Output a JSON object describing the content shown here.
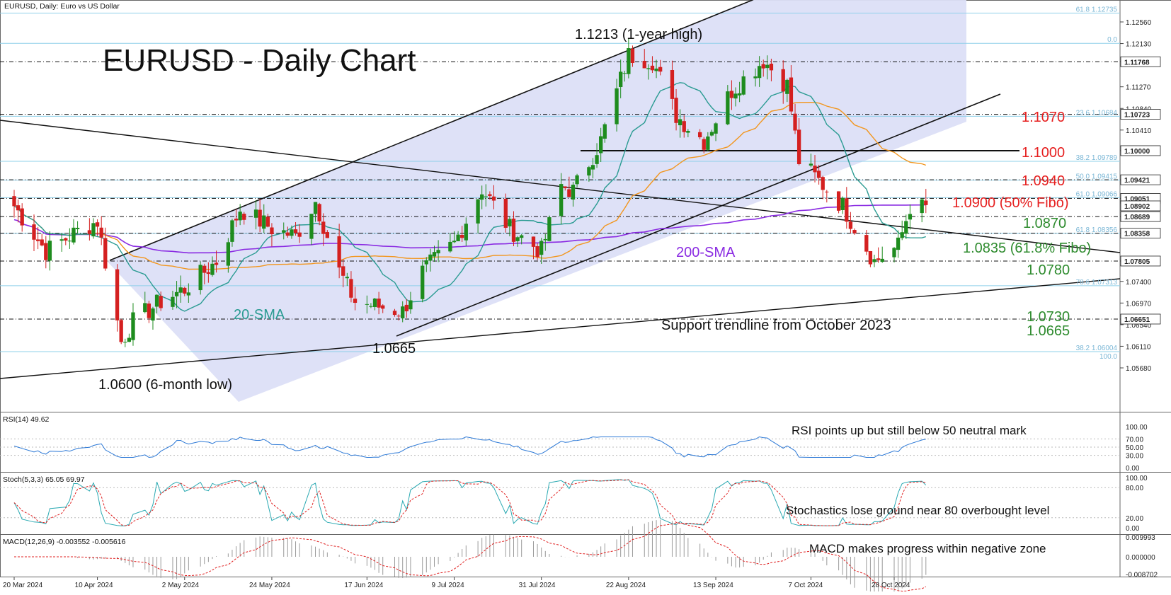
{
  "header": {
    "symbol_label": "EURUSD, Daily:  Euro vs US Dollar",
    "chart_title": "EURUSD - Daily Chart"
  },
  "colors": {
    "channel_fill": "#dcdff7",
    "sma20": "#2a9b92",
    "sma50": "#f2961e",
    "sma200": "#8a2be2",
    "bull": "#1e8c1e",
    "bear": "#d42020",
    "fibo": "#8fd0ea",
    "level_red": "#e62020",
    "level_green": "#2e8b2e",
    "rsi": "#2b78d6",
    "stoch_main": "#2aa9b2",
    "stoch_signal": "#e02020",
    "macd_hist": "#9a9a9a",
    "macd_signal": "#e02020"
  },
  "price_axis": {
    "ticks": [
      "1.12560",
      "1.12130",
      "1.11768",
      "1.11270",
      "1.10840",
      "1.10410",
      "1.10000",
      "1.09421",
      "1.09051",
      "1.08689",
      "1.08358",
      "1.07805",
      "1.07400",
      "1.06970",
      "1.06651",
      "1.06540",
      "1.06110",
      "1.05680"
    ],
    "tags": [
      "1.09051",
      "1.08902",
      "1.08689",
      "1.08358",
      "1.07805",
      "1.06651",
      "1.10000",
      "1.10723",
      "1.11768",
      "1.09421"
    ]
  },
  "fibo_labels": [
    "61.8 1.12735",
    "0.0",
    "23.6 1.10684",
    "38.2 1.09789",
    "50.0 1.09415",
    "61.0 1.09066",
    "61.8 1.08356",
    "78.6 1.07313",
    "38.2 1.06004",
    "100.0"
  ],
  "levels": [
    {
      "text": "1.1070",
      "color": "red"
    },
    {
      "text": "1.1000",
      "color": "red"
    },
    {
      "text": "1.0940",
      "color": "red"
    },
    {
      "text": "1.0900 (50% Fibo)",
      "color": "red"
    },
    {
      "text": "1.0870",
      "color": "green"
    },
    {
      "text": "1.0835 (61.8% Fibo)",
      "color": "green"
    },
    {
      "text": "1.0780",
      "color": "green"
    },
    {
      "text": "1.0730",
      "color": "green"
    },
    {
      "text": "1.0665",
      "color": "green"
    }
  ],
  "annotations": {
    "year_high": "1.1213 (1-year high)",
    "six_month_low": "1.0600 (6-month low)",
    "low_1065": "1.0665",
    "sma20": "20-SMA",
    "sma200": "200-SMA",
    "support": "Support trendline from October 2023",
    "rsi_note": "RSI points up but still below 50 neutral mark",
    "stoch_note": "Stochastics lose ground near 80 overbought level",
    "macd_note": "MACD makes progress within negative zone"
  },
  "rsi_panel": {
    "title": "RSI(14) 49.62",
    "ticks": [
      "100.00",
      "70.00",
      "50.00",
      "30.00",
      "0.00"
    ]
  },
  "stoch_panel": {
    "title": "Stoch(5,3,3) 65.05 69.97",
    "ticks": [
      "100.00",
      "80.00",
      "20.00",
      "0.00"
    ]
  },
  "macd_panel": {
    "title": "MACD(12,26,9) -0.003552 -0.005616",
    "ticks": [
      "0.009993",
      "0.000000",
      "-0.008702"
    ]
  },
  "x_axis": {
    "labels": [
      "20 Mar 2024",
      "10 Apr 2024",
      "2 May 2024",
      "24 May 2024",
      "17 Jun 2024",
      "9 Jul 2024",
      "31 Jul 2024",
      "22 Aug 2024",
      "13 Sep 2024",
      "7 Oct 2024",
      "28 Oct 2024"
    ]
  },
  "chart_data": {
    "type": "candlestick",
    "title": "EURUSD - Daily Chart",
    "ylim": [
      1.0555,
      1.1283
    ],
    "x_range": [
      "2024-03-20",
      "2024-11-05"
    ],
    "price_path": [
      [
        "2024-03-20",
        1.089
      ],
      [
        "2024-03-28",
        1.08
      ],
      [
        "2024-04-05",
        1.084
      ],
      [
        "2024-04-10",
        1.086
      ],
      [
        "2024-04-16",
        1.062
      ],
      [
        "2024-04-19",
        1.066
      ],
      [
        "2024-04-26",
        1.07
      ],
      [
        "2024-05-02",
        1.0725
      ],
      [
        "2024-05-10",
        1.078
      ],
      [
        "2024-05-16",
        1.0885
      ],
      [
        "2024-05-24",
        1.0845
      ],
      [
        "2024-05-30",
        1.083
      ],
      [
        "2024-06-04",
        1.09
      ],
      [
        "2024-06-10",
        1.076
      ],
      [
        "2024-06-14",
        1.07
      ],
      [
        "2024-06-20",
        1.069
      ],
      [
        "2024-06-26",
        1.068
      ],
      [
        "2024-07-01",
        1.076
      ],
      [
        "2024-07-09",
        1.0815
      ],
      [
        "2024-07-16",
        1.0925
      ],
      [
        "2024-07-23",
        1.0845
      ],
      [
        "2024-07-31",
        1.08
      ],
      [
        "2024-08-05",
        1.093
      ],
      [
        "2024-08-08",
        1.092
      ],
      [
        "2024-08-15",
        1.102
      ],
      [
        "2024-08-22",
        1.119
      ],
      [
        "2024-08-28",
        1.118
      ],
      [
        "2024-09-03",
        1.107
      ],
      [
        "2024-09-10",
        1.102
      ],
      [
        "2024-09-17",
        1.112
      ],
      [
        "2024-09-25",
        1.118
      ],
      [
        "2024-10-01",
        1.113
      ],
      [
        "2024-10-04",
        1.098
      ],
      [
        "2024-10-09",
        1.094
      ],
      [
        "2024-10-15",
        1.089
      ],
      [
        "2024-10-23",
        1.078
      ],
      [
        "2024-10-29",
        1.081
      ],
      [
        "2024-11-01",
        1.089
      ],
      [
        "2024-11-05",
        1.0885
      ]
    ],
    "overlays": [
      "20-SMA",
      "50-SMA",
      "200-SMA",
      "ascending channel",
      "support trendline",
      "descending trendline",
      "Fibonacci retracement"
    ],
    "rsi_last": 49.62,
    "stoch_last": [
      65.05,
      69.97
    ],
    "macd_last": [
      -0.003552,
      -0.005616
    ],
    "grid": false,
    "legend": "none"
  }
}
